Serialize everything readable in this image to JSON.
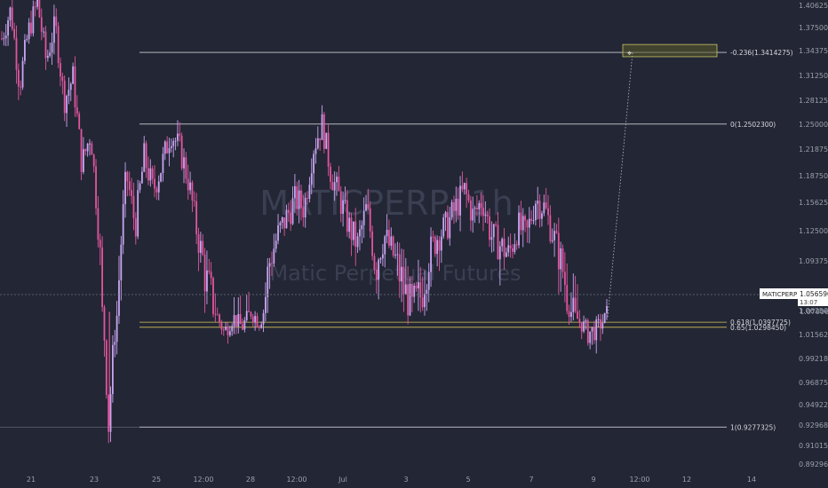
{
  "chart_data": {
    "type": "candlestick",
    "watermark": {
      "symbol": "MATICPERP, 1h",
      "description": "Matic Perpetual Futures"
    },
    "y_axis": {
      "ticks": [
        "1.4062500",
        "1.3750000",
        "1.3437500",
        "1.3125000",
        "1.2812500",
        "1.2500000",
        "1.2187500",
        "1.1875000",
        "1.1562500",
        "1.1250000",
        "1.0937500",
        "1.0625000",
        "1.0156250",
        "0.9921875",
        "0.9687500",
        "0.9492200",
        "0.9296875",
        "0.9101575",
        "0.8929675"
      ],
      "tick_values": [
        1.40625,
        1.375,
        1.34375,
        1.3125,
        1.28125,
        1.25,
        1.21875,
        1.1875,
        1.15625,
        1.125,
        1.09375,
        1.0625,
        1.015625,
        0.9921875,
        0.96875,
        0.94922,
        0.9296875,
        0.9101575,
        0.8929675
      ]
    },
    "x_axis": {
      "ticks": [
        "21",
        "23",
        "25",
        "12:00",
        "28",
        "12:00",
        "Jul",
        "3",
        "5",
        "7",
        "9",
        "12:00",
        "12",
        "14"
      ]
    },
    "price_marker": {
      "symbol": "MATICPERP",
      "price": "1.0565900",
      "countdown": "13:07",
      "hidden_tick": "1.0790625"
    },
    "fib_levels": [
      {
        "label": "-0.236(1.3414275)",
        "value": 1.3414275,
        "color": "#c9ccd4"
      },
      {
        "label": "0(1.2502300)",
        "value": 1.25023,
        "color": "#c9ccd4"
      },
      {
        "label": "0.618(1.0397725)",
        "value": 1.0397725,
        "color": "#d4c45a"
      },
      {
        "label": "0.65(1.0298450)",
        "value": 1.029845,
        "color": "#d4c45a"
      },
      {
        "label": "1(0.9277325)",
        "value": 0.9277325,
        "color": "#c9ccd4"
      }
    ],
    "target_box": {
      "low": 1.336,
      "high": 1.352
    },
    "series_path": [
      [
        0,
        1.36
      ],
      [
        1,
        1.4
      ],
      [
        2,
        1.3
      ],
      [
        3,
        1.37
      ],
      [
        4,
        1.41
      ],
      [
        5,
        1.33
      ],
      [
        6,
        1.38
      ],
      [
        7,
        1.28
      ],
      [
        8,
        1.31
      ],
      [
        9,
        1.2
      ],
      [
        10,
        1.24
      ],
      [
        11,
        1.11
      ],
      [
        12,
        0.93
      ],
      [
        13,
        1.06
      ],
      [
        14,
        1.19
      ],
      [
        15,
        1.13
      ],
      [
        16,
        1.21
      ],
      [
        17,
        1.17
      ],
      [
        18,
        1.2
      ],
      [
        19,
        1.24
      ],
      [
        20,
        1.22
      ],
      [
        21,
        1.18
      ],
      [
        22,
        1.12
      ],
      [
        23,
        1.08
      ],
      [
        24,
        1.06
      ],
      [
        25,
        1.02
      ],
      [
        26,
        1.05
      ],
      [
        27,
        1.03
      ],
      [
        28,
        1.06
      ],
      [
        29,
        1.04
      ],
      [
        30,
        1.09
      ],
      [
        31,
        1.12
      ],
      [
        32,
        1.14
      ],
      [
        33,
        1.16
      ],
      [
        34,
        1.15
      ],
      [
        35,
        1.22
      ],
      [
        36,
        1.25
      ],
      [
        37,
        1.19
      ],
      [
        38,
        1.16
      ],
      [
        39,
        1.13
      ],
      [
        40,
        1.11
      ],
      [
        41,
        1.15
      ],
      [
        42,
        1.09
      ],
      [
        43,
        1.12
      ],
      [
        44,
        1.1
      ],
      [
        45,
        1.08
      ],
      [
        46,
        1.06
      ],
      [
        47,
        1.07
      ],
      [
        48,
        1.1
      ],
      [
        49,
        1.12
      ],
      [
        50,
        1.13
      ],
      [
        51,
        1.15
      ],
      [
        52,
        1.17
      ],
      [
        53,
        1.14
      ],
      [
        54,
        1.16
      ],
      [
        55,
        1.12
      ],
      [
        56,
        1.11
      ],
      [
        57,
        1.1
      ],
      [
        58,
        1.13
      ],
      [
        59,
        1.12
      ],
      [
        60,
        1.16
      ],
      [
        61,
        1.15
      ],
      [
        62,
        1.12
      ],
      [
        63,
        1.09
      ],
      [
        64,
        1.06
      ],
      [
        65,
        1.04
      ],
      [
        66,
        1.02
      ],
      [
        67,
        1.03
      ],
      [
        68,
        1.05
      ]
    ],
    "projection_end": 1.3414275
  }
}
